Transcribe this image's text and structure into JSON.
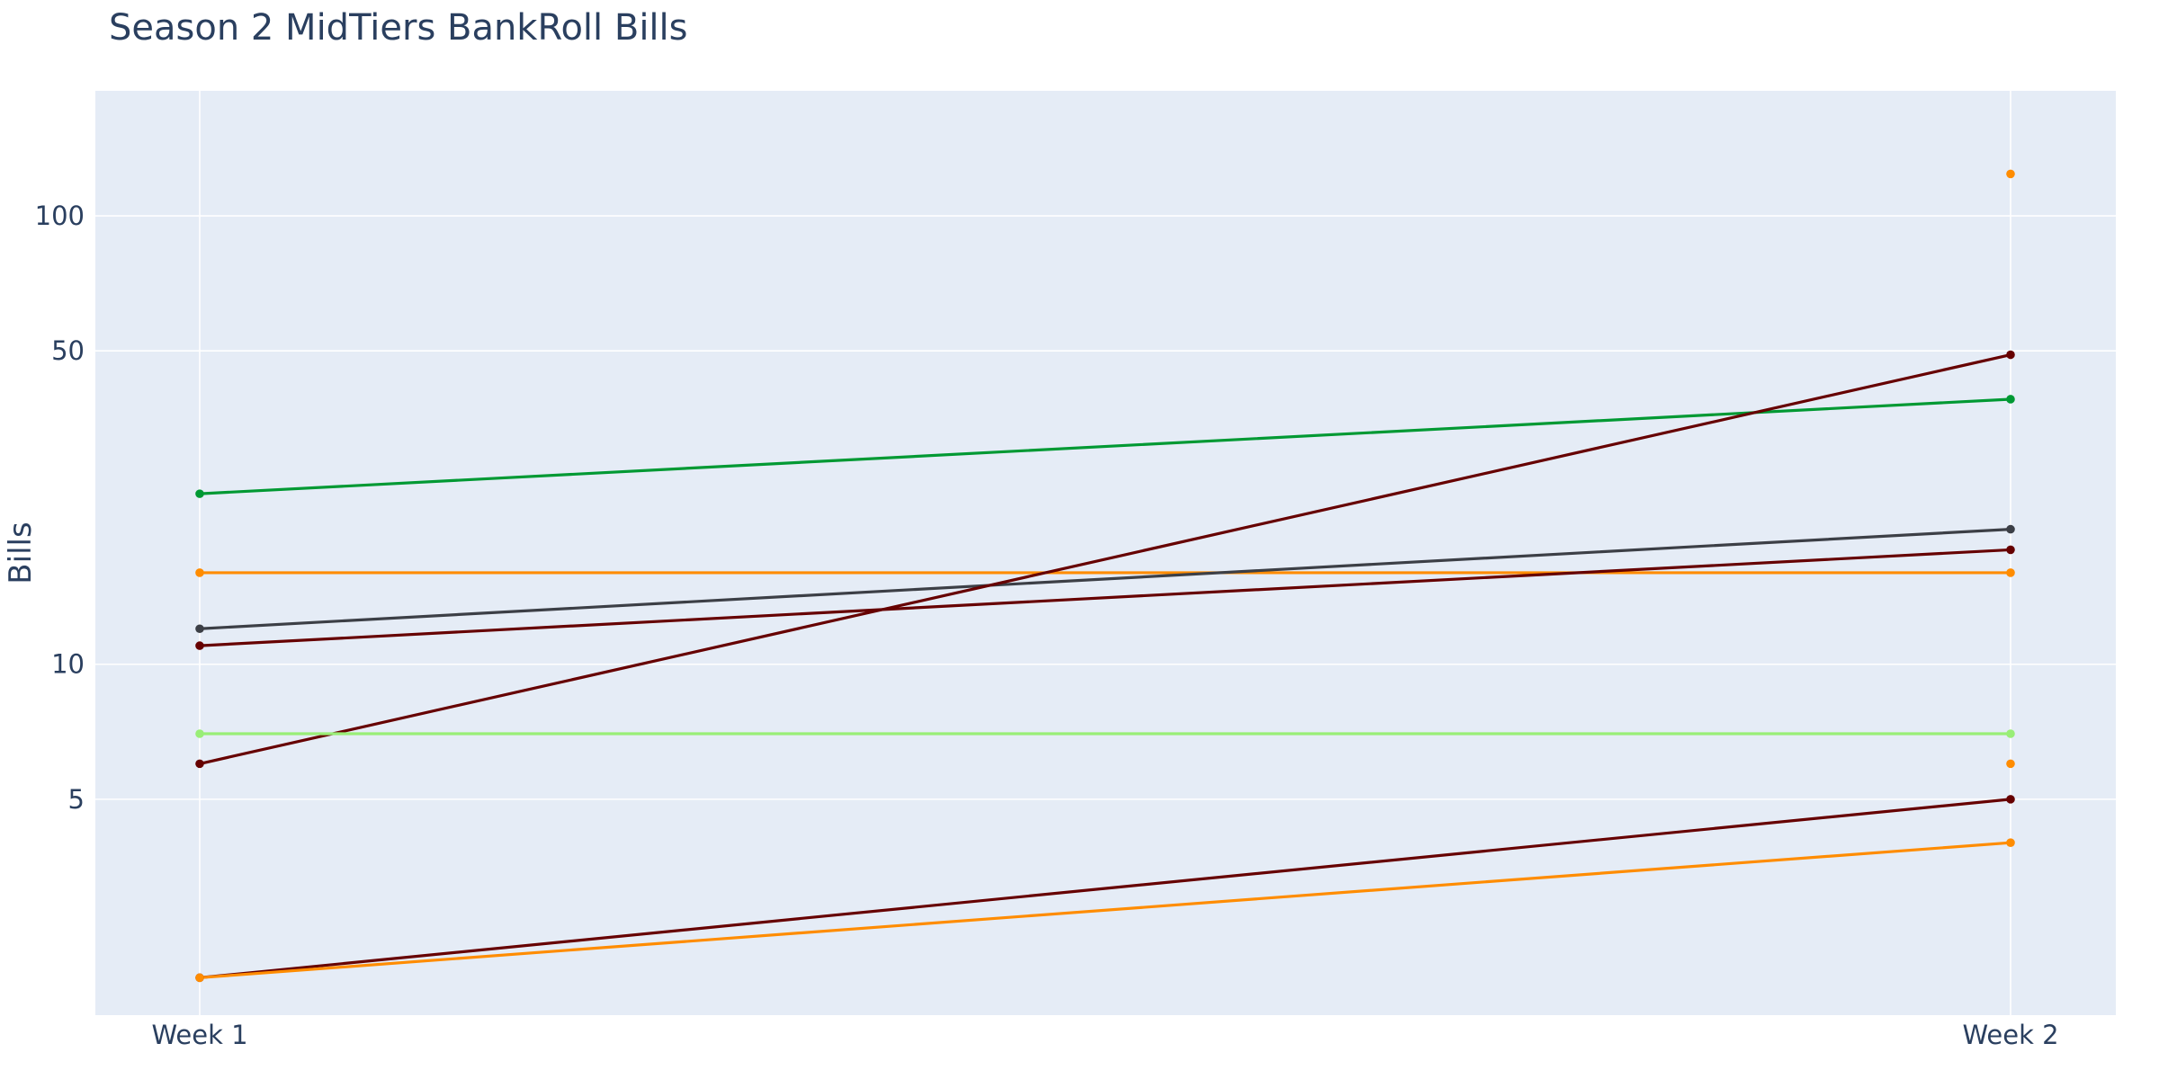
{
  "chart_data": {
    "type": "line",
    "title": "Season 2 MidTiers BankRoll Bills",
    "xlabel": "",
    "ylabel": "Bills",
    "y_scale": "log",
    "ylim": [
      1.65,
      190
    ],
    "categories": [
      "Week 1",
      "Week 2"
    ],
    "y_ticks": [
      5,
      10,
      50,
      100
    ],
    "y_tick_labels": [
      "5",
      "10",
      "50",
      "100"
    ],
    "grid": true,
    "legend": "none",
    "series": [
      {
        "color": "#009933",
        "values": [
          24,
          39
        ]
      },
      {
        "color": "#ff8c00",
        "values": [
          16,
          16
        ]
      },
      {
        "color": "#3c3f46",
        "values": [
          12,
          20
        ]
      },
      {
        "color": "#660000",
        "values": [
          11,
          18
        ]
      },
      {
        "color": "#660000",
        "values": [
          6,
          49
        ]
      },
      {
        "color": "#99ee77",
        "values": [
          7,
          7
        ]
      },
      {
        "color": "#660000",
        "values": [
          2,
          5
        ]
      },
      {
        "color": "#ff8c00",
        "values": [
          2,
          4
        ]
      },
      {
        "color": "#ff8c00",
        "values": [
          null,
          124
        ]
      },
      {
        "color": "#ff8c00",
        "values": [
          null,
          6
        ]
      }
    ]
  }
}
